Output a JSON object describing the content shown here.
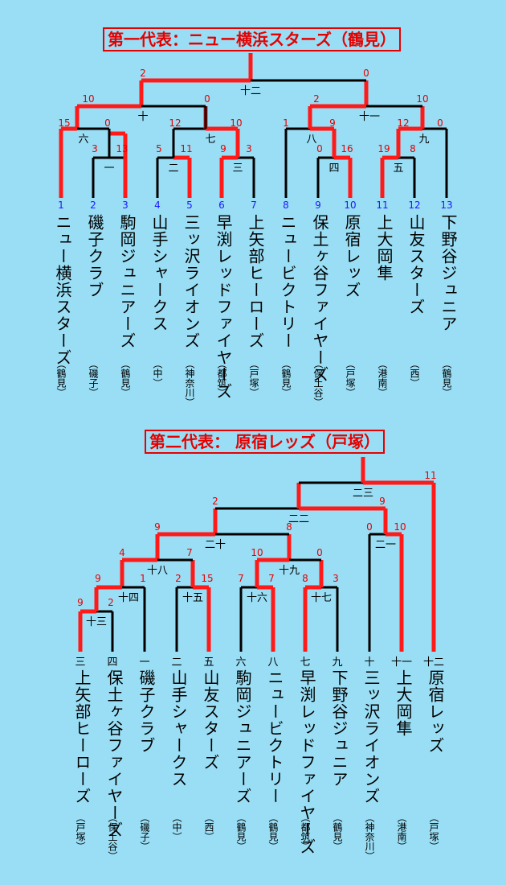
{
  "bracket1": {
    "title": "第一代表：ニュー横浜スターズ（鶴見）",
    "line_colors": {
      "winner": "#ff1a1a",
      "normal": "#000000"
    },
    "teams": [
      {
        "seed": "1",
        "name": "ニュー横浜スターズ",
        "district": "（鶴見）"
      },
      {
        "seed": "2",
        "name": "磯子クラブ",
        "district": "（磯子）"
      },
      {
        "seed": "3",
        "name": "駒岡ジュニアーズ",
        "district": "（鶴見）"
      },
      {
        "seed": "4",
        "name": "山手シャークス",
        "district": "（中）"
      },
      {
        "seed": "5",
        "name": "三ッ沢ライオンズ",
        "district": "（神奈川）"
      },
      {
        "seed": "6",
        "name": "早渕レッドファイヤーズ",
        "district": "（都筑）"
      },
      {
        "seed": "7",
        "name": "上矢部ヒーローズ",
        "district": "（戸塚）"
      },
      {
        "seed": "8",
        "name": "ニュービクトリー",
        "district": "（鶴見）"
      },
      {
        "seed": "9",
        "name": "保土ヶ谷ファイヤーズ",
        "district": "（保土谷）"
      },
      {
        "seed": "10",
        "name": "原宿レッズ",
        "district": "（戸塚）"
      },
      {
        "seed": "11",
        "name": "上大岡隼",
        "district": "（港南）"
      },
      {
        "seed": "12",
        "name": "山友スターズ",
        "district": "（西）"
      },
      {
        "seed": "13",
        "name": "下野谷ジュニア",
        "district": "（鶴見）"
      }
    ],
    "games": [
      "一",
      "二",
      "三",
      "四",
      "五",
      "六",
      "七",
      "八",
      "九",
      "十",
      "十一",
      "十二"
    ],
    "scores": [
      "15",
      "0",
      "3",
      "13",
      "5",
      "11",
      "9",
      "3",
      "12",
      "10",
      "10",
      "0",
      "2",
      "0",
      "1",
      "9",
      "0",
      "16",
      "19",
      "8",
      "12",
      "0",
      "2",
      "10",
      "0"
    ]
  },
  "bracket2": {
    "title": "第二代表： 原宿レッズ（戸塚）",
    "teams": [
      {
        "label": "三",
        "name": "上矢部ヒーローズ",
        "district": "（戸塚）"
      },
      {
        "label": "四",
        "name": "保土ヶ谷ファイヤーズ",
        "district": "（保土谷）"
      },
      {
        "label": "一",
        "name": "磯子クラブ",
        "district": "（磯子）"
      },
      {
        "label": "二",
        "name": "山手シャークス",
        "district": "（中）"
      },
      {
        "label": "五",
        "name": "山友スターズ",
        "district": "（西）"
      },
      {
        "label": "六",
        "name": "駒岡ジュニアーズ",
        "district": "（鶴見）"
      },
      {
        "label": "八",
        "name": "ニュービクトリー",
        "district": "（鶴見）"
      },
      {
        "label": "七",
        "name": "早渕レッドファイヤーズ",
        "district": "（都筑）"
      },
      {
        "label": "九",
        "name": "下野谷ジュニア",
        "district": "（鶴見）"
      },
      {
        "label": "十",
        "name": "三ッ沢ライオンズ",
        "district": "（神奈川）"
      },
      {
        "label": "十一",
        "name": "上大岡隼",
        "district": "（港南）"
      },
      {
        "label": "十二",
        "name": "原宿レッズ",
        "district": "（戸塚）"
      }
    ],
    "games": [
      "十三",
      "十四",
      "十五",
      "十六",
      "十七",
      "十八",
      "十九",
      "二十",
      "二一",
      "二二",
      "二三"
    ],
    "scores": [
      "9",
      "2",
      "9",
      "1",
      "4",
      "2",
      "15",
      "7",
      "7",
      "8",
      "3",
      "7",
      "10",
      "0",
      "9",
      "8",
      "0",
      "10",
      "2",
      "9",
      "11"
    ]
  }
}
